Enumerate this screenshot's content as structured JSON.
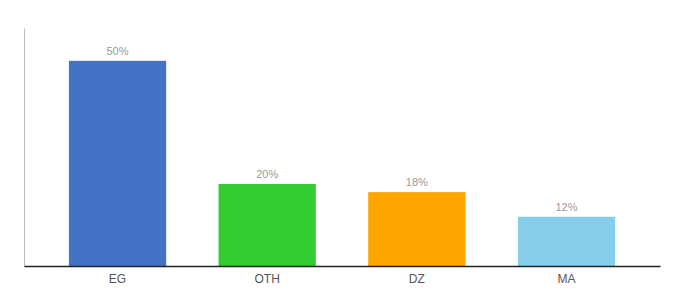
{
  "chart_data": {
    "type": "bar",
    "categories": [
      "EG",
      "OTH",
      "DZ",
      "MA"
    ],
    "values": [
      50,
      20,
      18,
      12
    ],
    "value_labels": [
      "50%",
      "20%",
      "18%",
      "12%"
    ],
    "colors": [
      "#4472C4",
      "#33CC33",
      "#FFA500",
      "#87CEEB"
    ],
    "ylim": [
      0,
      58
    ],
    "grid": false,
    "data_labels": true,
    "tick_labels": "x"
  }
}
